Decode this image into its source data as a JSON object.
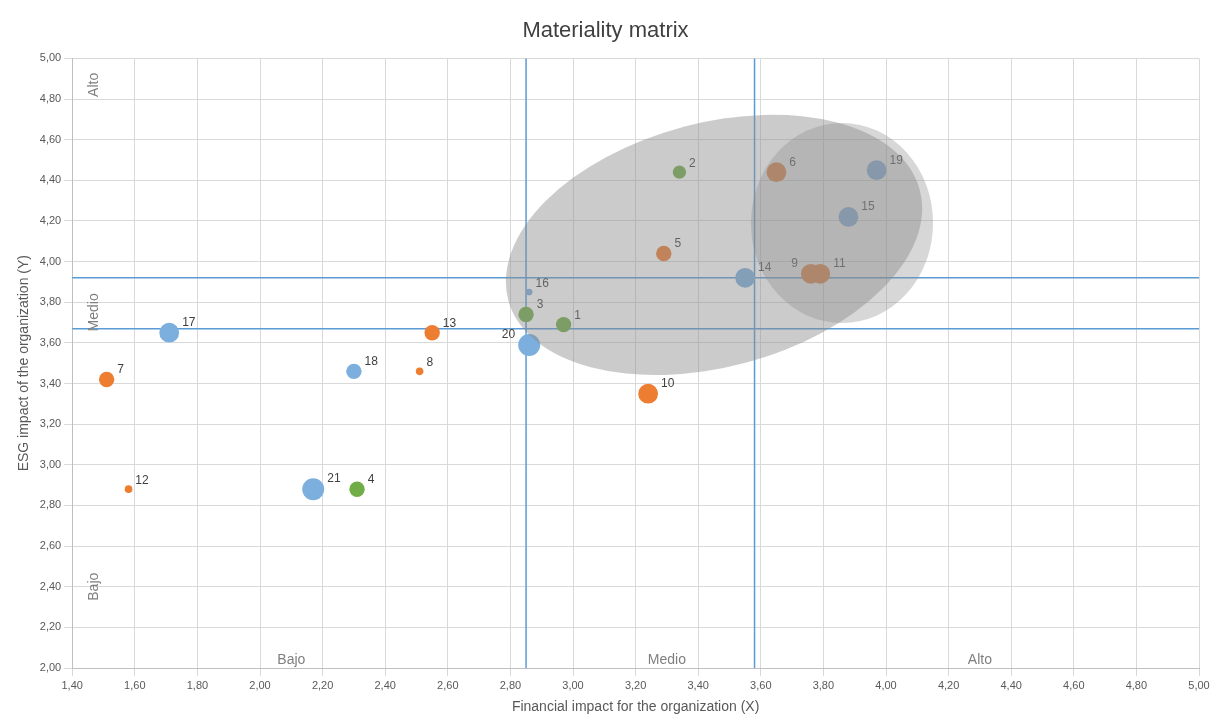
{
  "chart_data": {
    "type": "bubble",
    "title": "Materiality matrix",
    "xlabel": "Financial impact for the organization (X)",
    "ylabel": "ESG impact of the organization (Y)",
    "grid": true,
    "xlim": [
      1.4,
      5
    ],
    "ylim": [
      2,
      5
    ],
    "xticks": [
      {
        "value": 1.4,
        "label": "1,40"
      },
      {
        "value": 1.6,
        "label": "1,60"
      },
      {
        "value": 1.8,
        "label": "1,80"
      },
      {
        "value": 2,
        "label": "2,00"
      },
      {
        "value": 2.2,
        "label": "2,20"
      },
      {
        "value": 2.4,
        "label": "2,40"
      },
      {
        "value": 2.6,
        "label": "2,60"
      },
      {
        "value": 2.8,
        "label": "2,80"
      },
      {
        "value": 3,
        "label": "3,00"
      },
      {
        "value": 3.2,
        "label": "3,20"
      },
      {
        "value": 3.4,
        "label": "3,40"
      },
      {
        "value": 3.6,
        "label": "3,60"
      },
      {
        "value": 3.8,
        "label": "3,80"
      },
      {
        "value": 4,
        "label": "4,00"
      },
      {
        "value": 4.2,
        "label": "4,20"
      },
      {
        "value": 4.4,
        "label": "4,40"
      },
      {
        "value": 4.6,
        "label": "4,60"
      },
      {
        "value": 4.8,
        "label": "4,80"
      },
      {
        "value": 5,
        "label": "5,00"
      }
    ],
    "yticks": [
      {
        "value": 2,
        "label": "2,00"
      },
      {
        "value": 2.2,
        "label": "2,20"
      },
      {
        "value": 2.4,
        "label": "2,40"
      },
      {
        "value": 2.6,
        "label": "2,60"
      },
      {
        "value": 2.8,
        "label": "2,80"
      },
      {
        "value": 3,
        "label": "3,00"
      },
      {
        "value": 3.2,
        "label": "3,20"
      },
      {
        "value": 3.4,
        "label": "3,40"
      },
      {
        "value": 3.6,
        "label": "3,60"
      },
      {
        "value": 3.8,
        "label": "3,80"
      },
      {
        "value": 4,
        "label": "4,00"
      },
      {
        "value": 4.2,
        "label": "4,20"
      },
      {
        "value": 4.4,
        "label": "4,40"
      },
      {
        "value": 4.6,
        "label": "4,60"
      },
      {
        "value": 4.8,
        "label": "4,80"
      },
      {
        "value": 5,
        "label": "5,00"
      }
    ],
    "series": [
      {
        "name": "1",
        "color": "#70ad47",
        "x": [
          2.97
        ],
        "values": [
          3.69
        ],
        "sizes": [
          0.49
        ]
      },
      {
        "name": "2",
        "color": "#70ad47",
        "x": [
          3.34
        ],
        "values": [
          4.44
        ],
        "sizes": [
          0.36
        ]
      },
      {
        "name": "3",
        "color": "#70ad47",
        "x": [
          2.85
        ],
        "values": [
          3.74
        ],
        "sizes": [
          0.49
        ]
      },
      {
        "name": "4",
        "color": "#70ad47",
        "x": [
          2.31
        ],
        "values": [
          2.88
        ],
        "sizes": [
          0.49
        ]
      },
      {
        "name": "5",
        "color": "#ed7d31",
        "x": [
          3.29
        ],
        "values": [
          4.04
        ],
        "sizes": [
          0.49
        ]
      },
      {
        "name": "6",
        "color": "#ed7d31",
        "x": [
          3.65
        ],
        "values": [
          4.44
        ],
        "sizes": [
          0.81
        ]
      },
      {
        "name": "7",
        "color": "#ed7d31",
        "x": [
          1.51
        ],
        "values": [
          3.42
        ],
        "sizes": [
          0.49
        ]
      },
      {
        "name": "8",
        "color": "#ed7d31",
        "x": [
          2.51
        ],
        "values": [
          3.46
        ],
        "sizes": [
          0.12
        ]
      },
      {
        "name": "9",
        "color": "#ed7d31",
        "x": [
          3.76
        ],
        "values": [
          3.94
        ],
        "sizes": [
          0.81
        ]
      },
      {
        "name": "10",
        "color": "#ed7d31",
        "x": [
          3.24
        ],
        "values": [
          3.35
        ],
        "sizes": [
          0.81
        ]
      },
      {
        "name": "11",
        "color": "#ed7d31",
        "x": [
          3.79
        ],
        "values": [
          3.94
        ],
        "sizes": [
          0.81
        ]
      },
      {
        "name": "12",
        "color": "#ed7d31",
        "x": [
          1.58
        ],
        "values": [
          2.88
        ],
        "sizes": [
          0.12
        ]
      },
      {
        "name": "13",
        "color": "#ed7d31",
        "x": [
          2.55
        ],
        "values": [
          3.65
        ],
        "sizes": [
          0.49
        ]
      },
      {
        "name": "14",
        "color": "#7cafdd",
        "x": [
          3.55
        ],
        "values": [
          3.92
        ],
        "sizes": [
          0.81
        ]
      },
      {
        "name": "15",
        "color": "#7cafdd",
        "x": [
          3.88
        ],
        "values": [
          4.22
        ],
        "sizes": [
          0.81
        ]
      },
      {
        "name": "16",
        "color": "#7cafdd",
        "x": [
          2.86
        ],
        "values": [
          3.85
        ],
        "sizes": [
          0.09
        ]
      },
      {
        "name": "17",
        "color": "#7cafdd",
        "x": [
          1.71
        ],
        "values": [
          3.65
        ],
        "sizes": [
          0.81
        ]
      },
      {
        "name": "18",
        "color": "#7cafdd",
        "x": [
          2.3
        ],
        "values": [
          3.46
        ],
        "sizes": [
          0.49
        ]
      },
      {
        "name": "19",
        "color": "#7cafdd",
        "x": [
          3.97
        ],
        "values": [
          4.45
        ],
        "sizes": [
          0.81
        ]
      },
      {
        "name": "20",
        "color": "#7cafdd",
        "x": [
          2.86
        ],
        "values": [
          3.59
        ],
        "sizes": [
          1
        ]
      },
      {
        "name": "21",
        "color": "#7cafdd",
        "x": [
          2.17
        ],
        "values": [
          2.88
        ],
        "sizes": [
          1
        ]
      }
    ],
    "ref_lines": [
      {
        "axis": "x",
        "value": 2.85,
        "color": "#5b9bd5"
      },
      {
        "axis": "x",
        "value": 3.58,
        "color": "#5b9bd5"
      },
      {
        "axis": "y",
        "value": 3.92,
        "color": "#5b9bd5"
      },
      {
        "axis": "y",
        "value": 3.67,
        "color": "#5b9bd5"
      }
    ],
    "annotations": [
      "Alto",
      "Medio",
      "Bajo",
      "Bajo",
      "Medio",
      "Alto"
    ]
  }
}
